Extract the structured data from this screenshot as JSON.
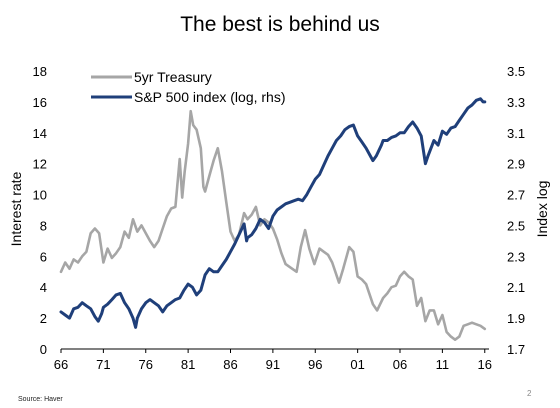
{
  "slide": {
    "title": "The best is behind us",
    "source": "Source: Haver",
    "page_number": "2"
  },
  "chart_data": {
    "type": "line",
    "title": "The best is behind us",
    "xlabel": "",
    "ylabel": "Interest rate",
    "y2label": "Index log",
    "xlim": [
      1966,
      2016.5
    ],
    "ylim": [
      0,
      18
    ],
    "y2lim": [
      1.7,
      3.5
    ],
    "x_ticks": [
      1966,
      1971,
      1976,
      1981,
      1986,
      1991,
      1996,
      2001,
      2006,
      2011,
      2016
    ],
    "x_tick_labels": [
      "66",
      "71",
      "76",
      "81",
      "86",
      "91",
      "96",
      "01",
      "06",
      "11",
      "16"
    ],
    "y_ticks": [
      0,
      2,
      4,
      6,
      8,
      10,
      12,
      14,
      16,
      18
    ],
    "y_tick_labels": [
      "0",
      "2",
      "4",
      "6",
      "8",
      "10",
      "12",
      "14",
      "16",
      "18"
    ],
    "y2_ticks": [
      1.7,
      1.9,
      2.1,
      2.3,
      2.5,
      2.7,
      2.9,
      3.1,
      3.3,
      3.5
    ],
    "y2_tick_labels": [
      "1.7",
      "1.9",
      "2.1",
      "2.3",
      "2.5",
      "2.7",
      "2.9",
      "3.1",
      "3.3",
      "3.5"
    ],
    "grid": false,
    "legend": "top-left",
    "series": [
      {
        "name": "5yr Treasury",
        "axis": "left",
        "color": "#a6a6a6",
        "points": [
          [
            1966.0,
            5.0
          ],
          [
            1966.5,
            5.6
          ],
          [
            1967.0,
            5.2
          ],
          [
            1967.5,
            5.8
          ],
          [
            1968.0,
            5.6
          ],
          [
            1968.5,
            6.0
          ],
          [
            1969.0,
            6.3
          ],
          [
            1969.5,
            7.5
          ],
          [
            1970.0,
            7.8
          ],
          [
            1970.5,
            7.5
          ],
          [
            1971.0,
            5.6
          ],
          [
            1971.5,
            6.5
          ],
          [
            1972.0,
            5.9
          ],
          [
            1972.5,
            6.2
          ],
          [
            1973.0,
            6.6
          ],
          [
            1973.5,
            7.6
          ],
          [
            1974.0,
            7.2
          ],
          [
            1974.5,
            8.4
          ],
          [
            1975.0,
            7.6
          ],
          [
            1975.5,
            8.0
          ],
          [
            1976.0,
            7.5
          ],
          [
            1976.5,
            7.0
          ],
          [
            1977.0,
            6.6
          ],
          [
            1977.5,
            7.0
          ],
          [
            1978.0,
            7.8
          ],
          [
            1978.5,
            8.6
          ],
          [
            1979.0,
            9.1
          ],
          [
            1979.5,
            9.2
          ],
          [
            1980.0,
            12.3
          ],
          [
            1980.3,
            9.8
          ],
          [
            1980.6,
            11.5
          ],
          [
            1981.0,
            13.3
          ],
          [
            1981.3,
            15.4
          ],
          [
            1981.6,
            14.5
          ],
          [
            1982.0,
            14.2
          ],
          [
            1982.5,
            13.0
          ],
          [
            1982.8,
            10.5
          ],
          [
            1983.0,
            10.2
          ],
          [
            1983.5,
            11.2
          ],
          [
            1984.0,
            12.2
          ],
          [
            1984.5,
            13.0
          ],
          [
            1985.0,
            11.5
          ],
          [
            1985.5,
            9.5
          ],
          [
            1986.0,
            7.6
          ],
          [
            1986.5,
            7.0
          ],
          [
            1987.0,
            7.4
          ],
          [
            1987.6,
            8.8
          ],
          [
            1988.0,
            8.4
          ],
          [
            1988.5,
            8.7
          ],
          [
            1989.0,
            9.2
          ],
          [
            1989.5,
            8.0
          ],
          [
            1990.0,
            8.4
          ],
          [
            1990.5,
            8.2
          ],
          [
            1991.0,
            7.8
          ],
          [
            1991.5,
            7.1
          ],
          [
            1992.0,
            6.2
          ],
          [
            1992.5,
            5.5
          ],
          [
            1993.0,
            5.3
          ],
          [
            1993.8,
            5.0
          ],
          [
            1994.3,
            6.6
          ],
          [
            1994.8,
            7.7
          ],
          [
            1995.3,
            6.5
          ],
          [
            1995.9,
            5.5
          ],
          [
            1996.5,
            6.5
          ],
          [
            1997.0,
            6.3
          ],
          [
            1997.5,
            6.1
          ],
          [
            1998.0,
            5.6
          ],
          [
            1998.8,
            4.3
          ],
          [
            1999.3,
            5.2
          ],
          [
            2000.0,
            6.6
          ],
          [
            2000.5,
            6.3
          ],
          [
            2001.0,
            4.7
          ],
          [
            2001.5,
            4.5
          ],
          [
            2002.0,
            4.2
          ],
          [
            2002.8,
            2.9
          ],
          [
            2003.3,
            2.5
          ],
          [
            2004.0,
            3.3
          ],
          [
            2004.5,
            3.6
          ],
          [
            2005.0,
            4.0
          ],
          [
            2005.5,
            4.1
          ],
          [
            2006.0,
            4.7
          ],
          [
            2006.5,
            5.0
          ],
          [
            2007.0,
            4.7
          ],
          [
            2007.5,
            4.5
          ],
          [
            2008.0,
            2.8
          ],
          [
            2008.5,
            3.3
          ],
          [
            2009.0,
            1.8
          ],
          [
            2009.5,
            2.5
          ],
          [
            2010.0,
            2.5
          ],
          [
            2010.5,
            1.6
          ],
          [
            2011.0,
            2.2
          ],
          [
            2011.5,
            1.1
          ],
          [
            2012.0,
            0.8
          ],
          [
            2012.5,
            0.6
          ],
          [
            2013.0,
            0.8
          ],
          [
            2013.5,
            1.5
          ],
          [
            2014.0,
            1.6
          ],
          [
            2014.5,
            1.7
          ],
          [
            2015.0,
            1.6
          ],
          [
            2015.5,
            1.5
          ],
          [
            2016.0,
            1.3
          ]
        ]
      },
      {
        "name": "S&P 500 index (log, rhs)",
        "axis": "right",
        "color": "#1f3f7a",
        "points": [
          [
            1966.0,
            1.94
          ],
          [
            1966.5,
            1.92
          ],
          [
            1967.0,
            1.9
          ],
          [
            1967.5,
            1.96
          ],
          [
            1968.0,
            1.97
          ],
          [
            1968.5,
            2.0
          ],
          [
            1969.0,
            1.98
          ],
          [
            1969.5,
            1.96
          ],
          [
            1970.0,
            1.91
          ],
          [
            1970.4,
            1.88
          ],
          [
            1970.8,
            1.93
          ],
          [
            1971.0,
            1.97
          ],
          [
            1971.5,
            1.99
          ],
          [
            1972.0,
            2.02
          ],
          [
            1972.5,
            2.05
          ],
          [
            1973.0,
            2.06
          ],
          [
            1973.5,
            2.0
          ],
          [
            1974.0,
            1.96
          ],
          [
            1974.5,
            1.9
          ],
          [
            1974.8,
            1.84
          ],
          [
            1975.0,
            1.9
          ],
          [
            1975.5,
            1.96
          ],
          [
            1976.0,
            2.0
          ],
          [
            1976.5,
            2.02
          ],
          [
            1977.0,
            2.0
          ],
          [
            1977.5,
            1.98
          ],
          [
            1978.0,
            1.94
          ],
          [
            1978.5,
            1.98
          ],
          [
            1979.0,
            2.0
          ],
          [
            1979.5,
            2.02
          ],
          [
            1980.0,
            2.03
          ],
          [
            1980.5,
            2.08
          ],
          [
            1981.0,
            2.12
          ],
          [
            1981.5,
            2.1
          ],
          [
            1982.0,
            2.05
          ],
          [
            1982.5,
            2.08
          ],
          [
            1983.0,
            2.18
          ],
          [
            1983.5,
            2.22
          ],
          [
            1984.0,
            2.2
          ],
          [
            1984.5,
            2.2
          ],
          [
            1985.0,
            2.24
          ],
          [
            1985.5,
            2.28
          ],
          [
            1986.0,
            2.33
          ],
          [
            1986.5,
            2.38
          ],
          [
            1987.0,
            2.44
          ],
          [
            1987.6,
            2.51
          ],
          [
            1987.9,
            2.4
          ],
          [
            1988.0,
            2.42
          ],
          [
            1988.5,
            2.44
          ],
          [
            1989.0,
            2.48
          ],
          [
            1989.5,
            2.54
          ],
          [
            1990.0,
            2.52
          ],
          [
            1990.5,
            2.48
          ],
          [
            1991.0,
            2.56
          ],
          [
            1991.5,
            2.6
          ],
          [
            1992.0,
            2.62
          ],
          [
            1992.5,
            2.64
          ],
          [
            1993.0,
            2.65
          ],
          [
            1993.5,
            2.66
          ],
          [
            1994.0,
            2.67
          ],
          [
            1994.5,
            2.66
          ],
          [
            1995.0,
            2.7
          ],
          [
            1995.5,
            2.75
          ],
          [
            1996.0,
            2.8
          ],
          [
            1996.5,
            2.83
          ],
          [
            1997.0,
            2.89
          ],
          [
            1997.5,
            2.95
          ],
          [
            1998.0,
            3.0
          ],
          [
            1998.5,
            3.05
          ],
          [
            1999.0,
            3.08
          ],
          [
            1999.5,
            3.12
          ],
          [
            2000.0,
            3.14
          ],
          [
            2000.5,
            3.15
          ],
          [
            2001.0,
            3.08
          ],
          [
            2001.5,
            3.04
          ],
          [
            2002.0,
            3.0
          ],
          [
            2002.5,
            2.95
          ],
          [
            2002.8,
            2.92
          ],
          [
            2003.2,
            2.95
          ],
          [
            2003.8,
            3.02
          ],
          [
            2004.0,
            3.05
          ],
          [
            2004.5,
            3.05
          ],
          [
            2005.0,
            3.07
          ],
          [
            2005.5,
            3.08
          ],
          [
            2006.0,
            3.1
          ],
          [
            2006.5,
            3.1
          ],
          [
            2007.0,
            3.14
          ],
          [
            2007.5,
            3.17
          ],
          [
            2008.0,
            3.13
          ],
          [
            2008.5,
            3.08
          ],
          [
            2009.0,
            2.9
          ],
          [
            2009.3,
            2.95
          ],
          [
            2009.8,
            3.02
          ],
          [
            2010.0,
            3.05
          ],
          [
            2010.5,
            3.02
          ],
          [
            2011.0,
            3.11
          ],
          [
            2011.5,
            3.09
          ],
          [
            2012.0,
            3.13
          ],
          [
            2012.5,
            3.14
          ],
          [
            2013.0,
            3.18
          ],
          [
            2013.5,
            3.22
          ],
          [
            2014.0,
            3.26
          ],
          [
            2014.5,
            3.28
          ],
          [
            2015.0,
            3.31
          ],
          [
            2015.5,
            3.32
          ],
          [
            2015.8,
            3.3
          ],
          [
            2016.0,
            3.3
          ]
        ]
      }
    ]
  }
}
